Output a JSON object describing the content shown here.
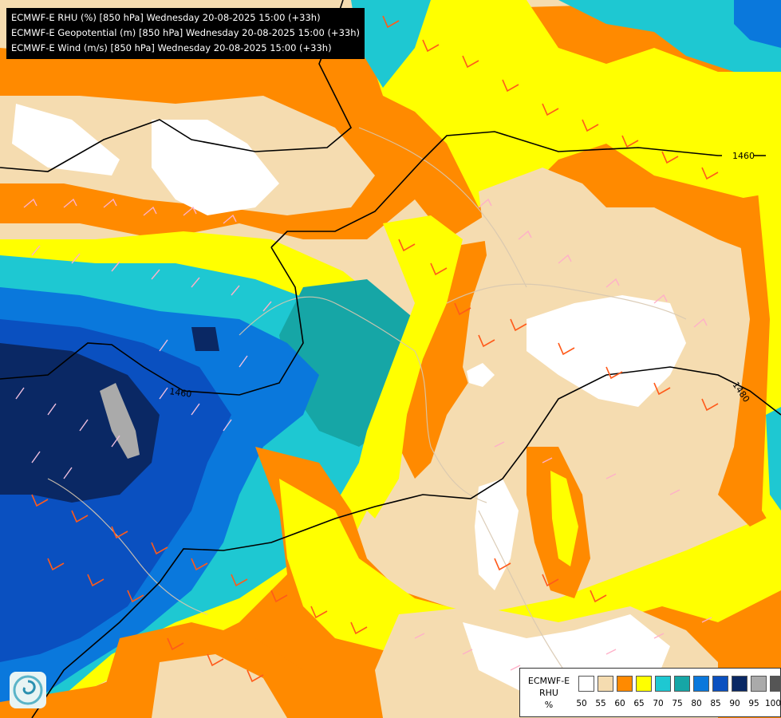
{
  "info_lines": [
    "ECMWF-E RHU (%) [850 hPa] Wednesday 20-08-2025 15:00 (+33h)",
    "ECMWF-E Geopotential (m) [850 hPa] Wednesday 20-08-2025 15:00 (+33h)",
    "ECMWF-E Wind (m/s) [850 hPa] Wednesday 20-08-2025 15:00 (+33h)"
  ],
  "legend": {
    "title_lines": [
      "ECMWF-E",
      "RHU",
      "%"
    ],
    "ticks": [
      "50",
      "55",
      "60",
      "65",
      "70",
      "75",
      "80",
      "85",
      "90",
      "95",
      "100"
    ],
    "colors": [
      "#ffffff",
      "#f5dcb0",
      "#ff8a00",
      "#ffff00",
      "#1ec8d2",
      "#16a6a6",
      "#0a78dc",
      "#0a50c0",
      "#0a2864",
      "#aaaaaa",
      "#555555"
    ]
  },
  "contour_labels": [
    "1460",
    "1460",
    "1480"
  ],
  "colors": {
    "rhu_white": "#ffffff",
    "rhu_55": "#f5dcb0",
    "rhu_60": "#ff8a00",
    "rhu_65": "#ffff00",
    "rhu_70": "#1ec8d2",
    "rhu_75": "#16a6a6",
    "rhu_80": "#0a78dc",
    "rhu_85": "#0a50c0",
    "rhu_90": "#0a2864"
  },
  "logo_icon": "swirl-logo"
}
